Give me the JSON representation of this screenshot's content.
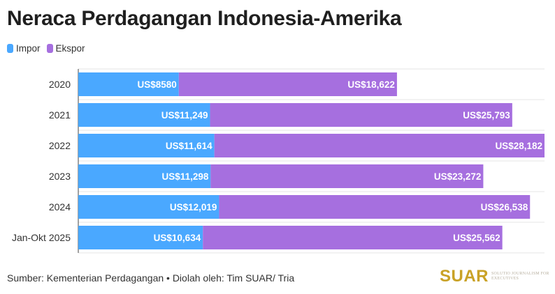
{
  "title": "Neraca Perdagangan Indonesia-Amerika",
  "legend": [
    {
      "label": "Impor",
      "color": "#4aa8ff"
    },
    {
      "label": "Ekspor",
      "color": "#a66fdf"
    }
  ],
  "chart_data": {
    "type": "bar",
    "orientation": "horizontal",
    "stacked": true,
    "categories": [
      "2020",
      "2021",
      "2022",
      "2023",
      "2024",
      "Jan-Okt 2025"
    ],
    "series": [
      {
        "name": "Impor",
        "color": "#4aa8ff",
        "values": [
          8580,
          11249,
          11614,
          11298,
          12019,
          10634
        ],
        "labels": [
          "US$8580",
          "US$11,249",
          "US$11,614",
          "US$11,298",
          "US$12,019",
          "US$10,634"
        ]
      },
      {
        "name": "Ekspor",
        "color": "#a66fdf",
        "values": [
          18622,
          25793,
          28182,
          23272,
          26538,
          25562
        ],
        "labels": [
          "US$18,622",
          "US$25,793",
          "US$28,182",
          "US$23,272",
          "US$26,538",
          "US$25,562"
        ]
      }
    ],
    "xlim": [
      0,
      39796
    ],
    "grid": true,
    "legend_position": "top-left"
  },
  "source": "Sumber: Kementerian Perdagangan • Diolah oleh: Tim SUAR/ Tria",
  "logo": {
    "word": "SUAR",
    "tagline": "Solutio Journalism for Executives"
  }
}
